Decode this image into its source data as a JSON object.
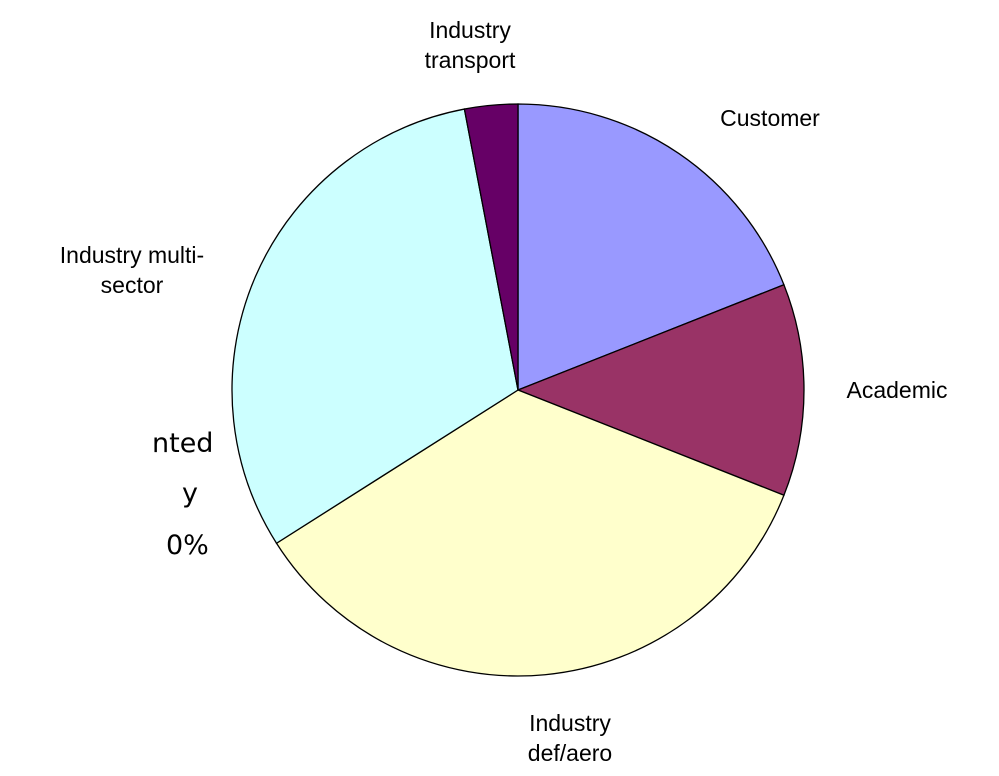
{
  "chart_data": {
    "type": "pie",
    "categories": [
      "Customer",
      "Academic",
      "Industry\ndef/aero",
      "Industry multi-\nsector",
      "Industry\ntransport"
    ],
    "values": [
      19,
      12,
      35,
      31,
      3
    ],
    "colors": [
      "#9999FF",
      "#993366",
      "#FFFFCC",
      "#CCFFFF",
      "#660066"
    ]
  },
  "side_text": [
    "nted",
    "y",
    "0%"
  ]
}
